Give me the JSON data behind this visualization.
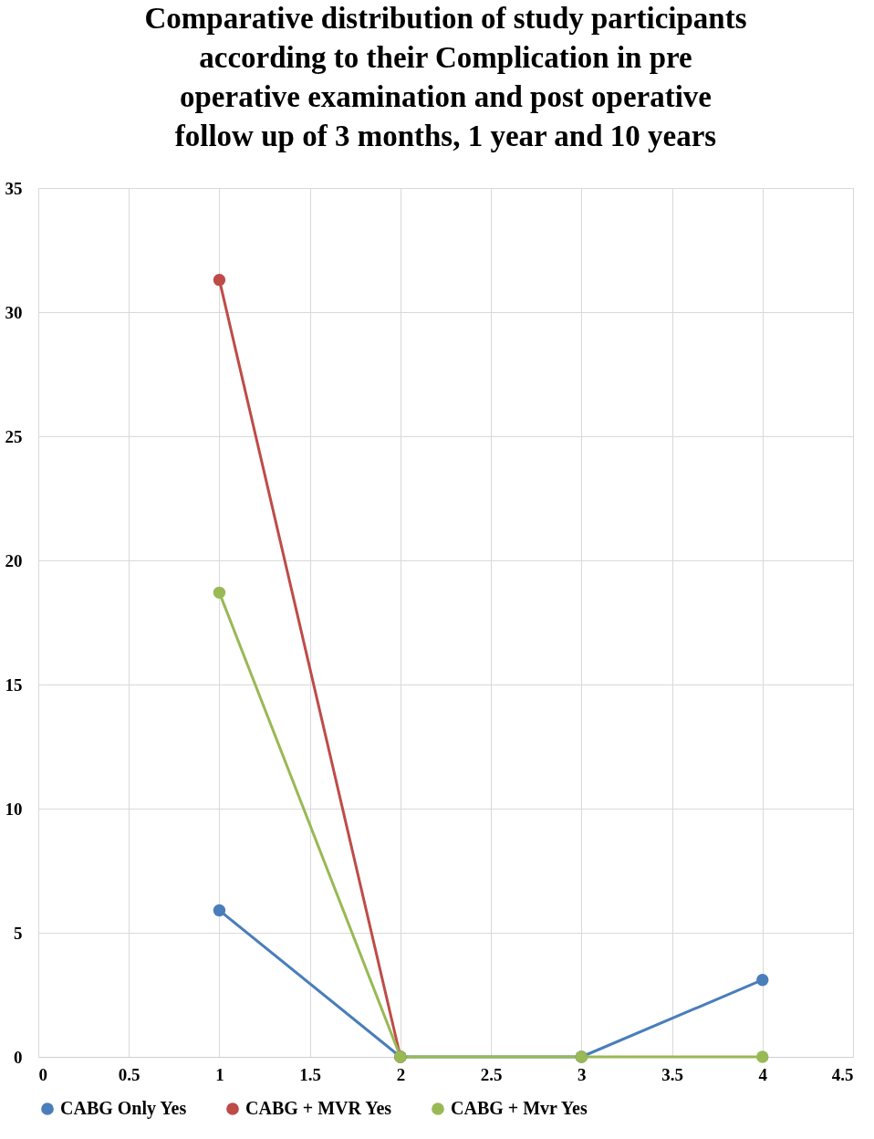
{
  "chart_data": {
    "type": "line",
    "title": [
      "Comparative distribution of study participants",
      "according to their Complication in pre",
      "operative examination and post operative",
      "follow up of 3 months, 1 year and 10 years"
    ],
    "x": [
      1,
      2,
      3,
      4
    ],
    "series": [
      {
        "name": "CABG Only Yes",
        "color": "#4a7ebb",
        "values": [
          5.9,
          0,
          0,
          3.1
        ]
      },
      {
        "name": "CABG + MVR Yes",
        "color": "#be4b48",
        "values": [
          31.3,
          0,
          null,
          null
        ]
      },
      {
        "name": "CABG + Mvr Yes",
        "color": "#98b954",
        "values": [
          18.7,
          0,
          0,
          0
        ]
      }
    ],
    "xlim": [
      0,
      4.5
    ],
    "xticks": [
      0,
      0.5,
      1,
      1.5,
      2,
      2.5,
      3,
      3.5,
      4,
      4.5
    ],
    "ylim": [
      0,
      35
    ],
    "yticks": [
      0,
      5,
      10,
      15,
      20,
      25,
      30,
      35
    ],
    "grid": true,
    "legend": "bottom",
    "marker": "circle",
    "line_style": "solid"
  }
}
